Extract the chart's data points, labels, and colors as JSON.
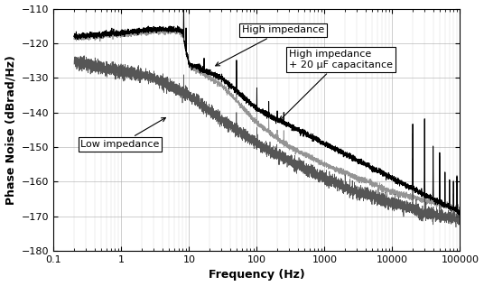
{
  "title": "",
  "xlabel": "Frequency (Hz)",
  "ylabel": "Phase Noise (dBrad/Hz)",
  "xlim": [
    0.1,
    100000
  ],
  "ylim": [
    -180,
    -110
  ],
  "yticks": [
    -180,
    -170,
    -160,
    -150,
    -140,
    -130,
    -120,
    -110
  ],
  "background_color": "#ffffff",
  "grid_color": "#aaaaaa"
}
